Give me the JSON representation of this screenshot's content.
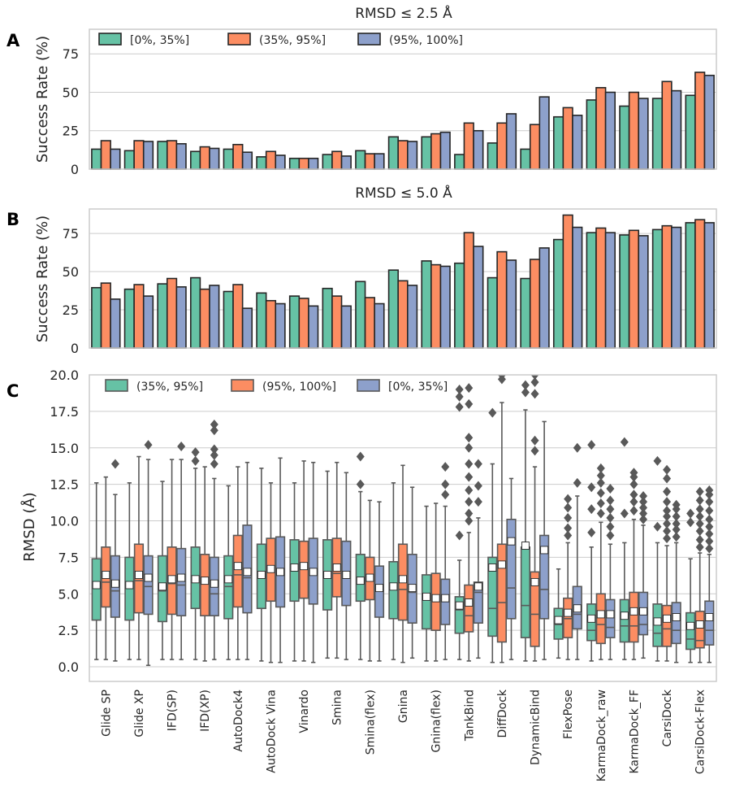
{
  "categories": [
    "Glide SP",
    "Glide XP",
    "IFD(SP)",
    "IFD(XP)",
    "AutoDock4",
    "AutoDock Vina",
    "Vinardo",
    "Smina",
    "Smina(flex)",
    "Gnina",
    "Gnina(flex)",
    "TankBind",
    "DiffDock",
    "DynamicBind",
    "FlexPose",
    "KarmaDock_raw",
    "KarmaDock_FF",
    "CarsiDock",
    "CarsiDock-Flex"
  ],
  "colors": {
    "green": "#66c2a5",
    "orange": "#fc8d62",
    "purple": "#8da0cb",
    "grid": "#cccccc",
    "bar_edge": "#262626",
    "box_edge": "#595959",
    "mean_marker": "#ffffff",
    "outlier": "#595959"
  },
  "chart_data": [
    {
      "panel": "A",
      "type": "bar",
      "title": "RMSD ≤ 2.5 Å",
      "ylabel": "Success Rate (%)",
      "ylim": [
        0,
        91
      ],
      "yticks": [
        0,
        25,
        50,
        75
      ],
      "legend_position": "top-left",
      "series": [
        {
          "name": "[0%, 35%]",
          "color": "green",
          "values": [
            13,
            12,
            18,
            11.5,
            13,
            8,
            7,
            9.5,
            12,
            21,
            21,
            9.5,
            17,
            13,
            34,
            45,
            41,
            46,
            48
          ]
        },
        {
          "name": "(35%, 95%]",
          "color": "orange",
          "values": [
            18.5,
            18.5,
            18.5,
            14.5,
            16,
            11.5,
            7,
            11.5,
            10,
            18.5,
            23,
            30,
            30,
            29,
            40,
            53,
            50,
            57,
            63
          ]
        },
        {
          "name": "(95%, 100%]",
          "color": "purple",
          "values": [
            13,
            18,
            16.5,
            13.5,
            11,
            9,
            7,
            8.5,
            10,
            18,
            24,
            25,
            36,
            47,
            35,
            50,
            46,
            51,
            61
          ]
        }
      ]
    },
    {
      "panel": "B",
      "type": "bar",
      "title": "RMSD ≤ 5.0 Å",
      "ylabel": "Success Rate (%)",
      "ylim": [
        0,
        91
      ],
      "yticks": [
        0,
        25,
        50,
        75
      ],
      "series": [
        {
          "name": "[0%, 35%]",
          "color": "green",
          "values": [
            39.5,
            38.5,
            42,
            46,
            37,
            36,
            34,
            39,
            43.5,
            51,
            57,
            55.5,
            46,
            45.5,
            71,
            75.5,
            74,
            77.5,
            82
          ]
        },
        {
          "name": "(35%, 95%]",
          "color": "orange",
          "values": [
            42.5,
            41.5,
            45.5,
            38.5,
            41.5,
            31,
            32.5,
            34,
            33,
            44,
            54.5,
            75.5,
            63,
            58,
            87,
            78.5,
            77,
            80,
            84
          ]
        },
        {
          "name": "(95%, 100%]",
          "color": "purple",
          "values": [
            32,
            34,
            40,
            41,
            26,
            29,
            27.5,
            27.5,
            29,
            41,
            53.5,
            66.5,
            57.5,
            65.5,
            79,
            75.5,
            73.5,
            79,
            82
          ]
        }
      ]
    },
    {
      "panel": "C",
      "type": "box",
      "ylabel": "RMSD (Å)",
      "ylim": [
        -1,
        20
      ],
      "yticks": [
        0,
        2.5,
        5,
        7.5,
        10,
        12.5,
        15,
        17.5,
        20
      ],
      "legend_position": "top-left",
      "series": [
        {
          "name": "(35%, 95%]",
          "color": "green",
          "stats": [
            [
              0.5,
              3.2,
              5.7,
              7.4,
              12.6,
              5.6,
              []
            ],
            [
              0.5,
              3.2,
              5.4,
              7.5,
              12.6,
              5.6,
              []
            ],
            [
              0.5,
              3.1,
              5.2,
              7.6,
              12.7,
              5.5,
              []
            ],
            [
              0.5,
              4.0,
              6.0,
              8.2,
              13.6,
              6.0,
              [
                14.1,
                14.7
              ]
            ],
            [
              0.5,
              3.3,
              5.5,
              7.6,
              12.4,
              6.0,
              []
            ],
            [
              0.4,
              4.0,
              6.3,
              8.4,
              13.6,
              6.3,
              []
            ],
            [
              0.4,
              4.5,
              6.7,
              8.7,
              12.6,
              6.8,
              []
            ],
            [
              0.6,
              3.9,
              6.2,
              8.7,
              13.4,
              6.3,
              []
            ],
            [
              0.5,
              4.5,
              6.1,
              7.7,
              12.0,
              5.9,
              [
                12.5,
                14.4
              ]
            ],
            [
              0.5,
              3.3,
              5.6,
              7.2,
              12.6,
              5.5,
              []
            ],
            [
              0.4,
              2.6,
              4.6,
              6.3,
              11.0,
              4.8,
              []
            ],
            [
              0.5,
              2.3,
              3.9,
              4.8,
              7.3,
              4.2,
              [
                9.0,
                17.8,
                18.5,
                19.0
              ]
            ],
            [
              0.3,
              2.1,
              4.0,
              7.5,
              13.9,
              6.8,
              [
                17.4
              ]
            ],
            [
              0.4,
              2.0,
              4.2,
              8.2,
              17.6,
              8.3,
              [
                18.8,
                19.3
              ]
            ],
            [
              0.6,
              1.9,
              2.9,
              4.0,
              6.7,
              3.2,
              []
            ],
            [
              0.4,
              1.8,
              2.5,
              4.3,
              8.2,
              3.3,
              [
                9.2,
                10.8,
                12.3,
                15.2
              ]
            ],
            [
              0.5,
              1.7,
              2.8,
              4.6,
              8.5,
              3.5,
              [
                10.5,
                15.4
              ]
            ],
            [
              0.4,
              1.4,
              2.3,
              4.3,
              8.5,
              3.1,
              [
                9.6,
                14.1
              ]
            ],
            [
              0.3,
              1.2,
              1.9,
              3.7,
              7.4,
              2.8,
              [
                9.9,
                10.5
              ]
            ]
          ]
        },
        {
          "name": "(95%, 100%]",
          "color": "orange",
          "stats": [
            [
              0.5,
              4.1,
              5.8,
              8.2,
              13.0,
              6.3,
              []
            ],
            [
              0.5,
              3.7,
              5.9,
              8.4,
              14.4,
              6.3,
              []
            ],
            [
              0.5,
              3.6,
              5.7,
              8.2,
              14.2,
              6.0,
              []
            ],
            [
              0.4,
              3.5,
              5.9,
              7.7,
              13.7,
              5.9,
              []
            ],
            [
              0.5,
              4.1,
              6.3,
              9.0,
              13.7,
              6.9,
              []
            ],
            [
              0.3,
              4.5,
              6.6,
              8.8,
              12.6,
              6.7,
              []
            ],
            [
              0.4,
              4.7,
              6.8,
              8.6,
              14.1,
              6.9,
              []
            ],
            [
              0.6,
              4.8,
              6.4,
              8.8,
              14.0,
              6.8,
              []
            ],
            [
              0.4,
              4.6,
              6.0,
              7.5,
              11.4,
              6.1,
              []
            ],
            [
              0.3,
              3.2,
              5.3,
              8.4,
              13.8,
              6.0,
              []
            ],
            [
              0.4,
              2.5,
              4.7,
              6.4,
              11.2,
              4.7,
              []
            ],
            [
              0.4,
              2.4,
              3.5,
              5.6,
              9.2,
              4.4,
              [
                10.0,
                10.5,
                11.3,
                12.1,
                13.0,
                13.9,
                15.0,
                15.7,
                18.0,
                19.1
              ]
            ],
            [
              0.3,
              1.7,
              4.4,
              8.4,
              18.1,
              7.0,
              [
                19.7,
                20.0
              ]
            ],
            [
              0.4,
              1.4,
              3.6,
              6.5,
              13.7,
              5.8,
              [
                14.8,
                15.5,
                18.7,
                19.5,
                20.0
              ]
            ],
            [
              0.5,
              2.0,
              3.3,
              4.7,
              8.5,
              3.7,
              [
                9.0,
                9.5,
                10.2,
                10.9,
                11.5
              ]
            ],
            [
              0.5,
              1.6,
              2.9,
              5.0,
              9.9,
              3.6,
              [
                10.5,
                11.2,
                11.9,
                12.6,
                13.1,
                13.6
              ]
            ],
            [
              0.5,
              1.7,
              2.8,
              5.1,
              10.1,
              3.8,
              [
                10.7,
                11.3,
                11.8,
                12.5,
                13.0,
                13.3
              ]
            ],
            [
              0.4,
              1.4,
              2.6,
              4.2,
              8.3,
              3.3,
              [
                8.8,
                9.3,
                9.8,
                10.3,
                10.7,
                11.3,
                12.0,
                12.9,
                13.5
              ]
            ],
            [
              0.3,
              1.3,
              1.8,
              3.8,
              7.8,
              2.9,
              [
                8.2,
                8.7,
                9.3,
                9.8,
                10.3,
                10.8,
                11.4,
                12.0
              ]
            ]
          ]
        },
        {
          "name": "[0%, 35%]",
          "color": "purple",
          "stats": [
            [
              0.4,
              3.4,
              5.2,
              7.6,
              11.8,
              5.7,
              [
                13.9
              ]
            ],
            [
              0.1,
              3.6,
              5.5,
              7.6,
              14.2,
              6.1,
              [
                15.2
              ]
            ],
            [
              0.5,
              3.5,
              5.6,
              8.1,
              14.2,
              6.1,
              [
                15.1
              ]
            ],
            [
              0.5,
              3.5,
              5.0,
              7.5,
              12.9,
              5.7,
              [
                13.9,
                14.5,
                14.9,
                16.2,
                16.6
              ]
            ],
            [
              0.5,
              3.7,
              6.1,
              9.7,
              14.0,
              6.5,
              []
            ],
            [
              0.3,
              4.1,
              6.3,
              8.9,
              14.3,
              6.5,
              []
            ],
            [
              0.3,
              4.3,
              6.6,
              8.8,
              14.0,
              6.5,
              []
            ],
            [
              0.5,
              4.2,
              6.2,
              8.6,
              13.3,
              6.3,
              []
            ],
            [
              0.4,
              3.4,
              5.2,
              6.9,
              11.3,
              5.4,
              []
            ],
            [
              0.6,
              3.0,
              5.1,
              7.7,
              12.3,
              5.4,
              []
            ],
            [
              0.5,
              2.9,
              4.6,
              6.0,
              11.0,
              4.7,
              [
                11.8,
                12.5,
                13.7
              ]
            ],
            [
              0.6,
              3.0,
              5.1,
              5.8,
              10.2,
              5.5,
              [
                11.3,
                12.4,
                13.9
              ]
            ],
            [
              0.5,
              3.3,
              5.4,
              10.1,
              12.9,
              8.6,
              []
            ],
            [
              0.5,
              3.3,
              5.3,
              9.0,
              16.8,
              8.0,
              []
            ],
            [
              0.5,
              2.6,
              3.6,
              5.5,
              11.7,
              4.0,
              [
                12.6,
                15.0
              ]
            ],
            [
              0.5,
              2.0,
              2.7,
              4.6,
              8.4,
              3.6,
              [
                9.0,
                9.6,
                10.2,
                10.8,
                11.4,
                12.2
              ]
            ],
            [
              0.6,
              2.2,
              2.9,
              5.1,
              9.7,
              3.8,
              [
                10.1,
                10.5,
                10.9,
                11.3,
                11.7
              ]
            ],
            [
              0.3,
              1.6,
              2.5,
              4.4,
              8.5,
              3.4,
              [
                8.9,
                9.4,
                9.8,
                10.3,
                10.8,
                11.1
              ]
            ],
            [
              0.3,
              1.5,
              2.5,
              4.5,
              7.7,
              3.4,
              [
                8.1,
                8.6,
                9.1,
                9.6,
                10.1,
                10.7,
                11.3,
                11.8,
                12.1
              ]
            ]
          ]
        }
      ]
    }
  ],
  "panel_labels": {
    "a": "A",
    "b": "B",
    "c": "C"
  }
}
